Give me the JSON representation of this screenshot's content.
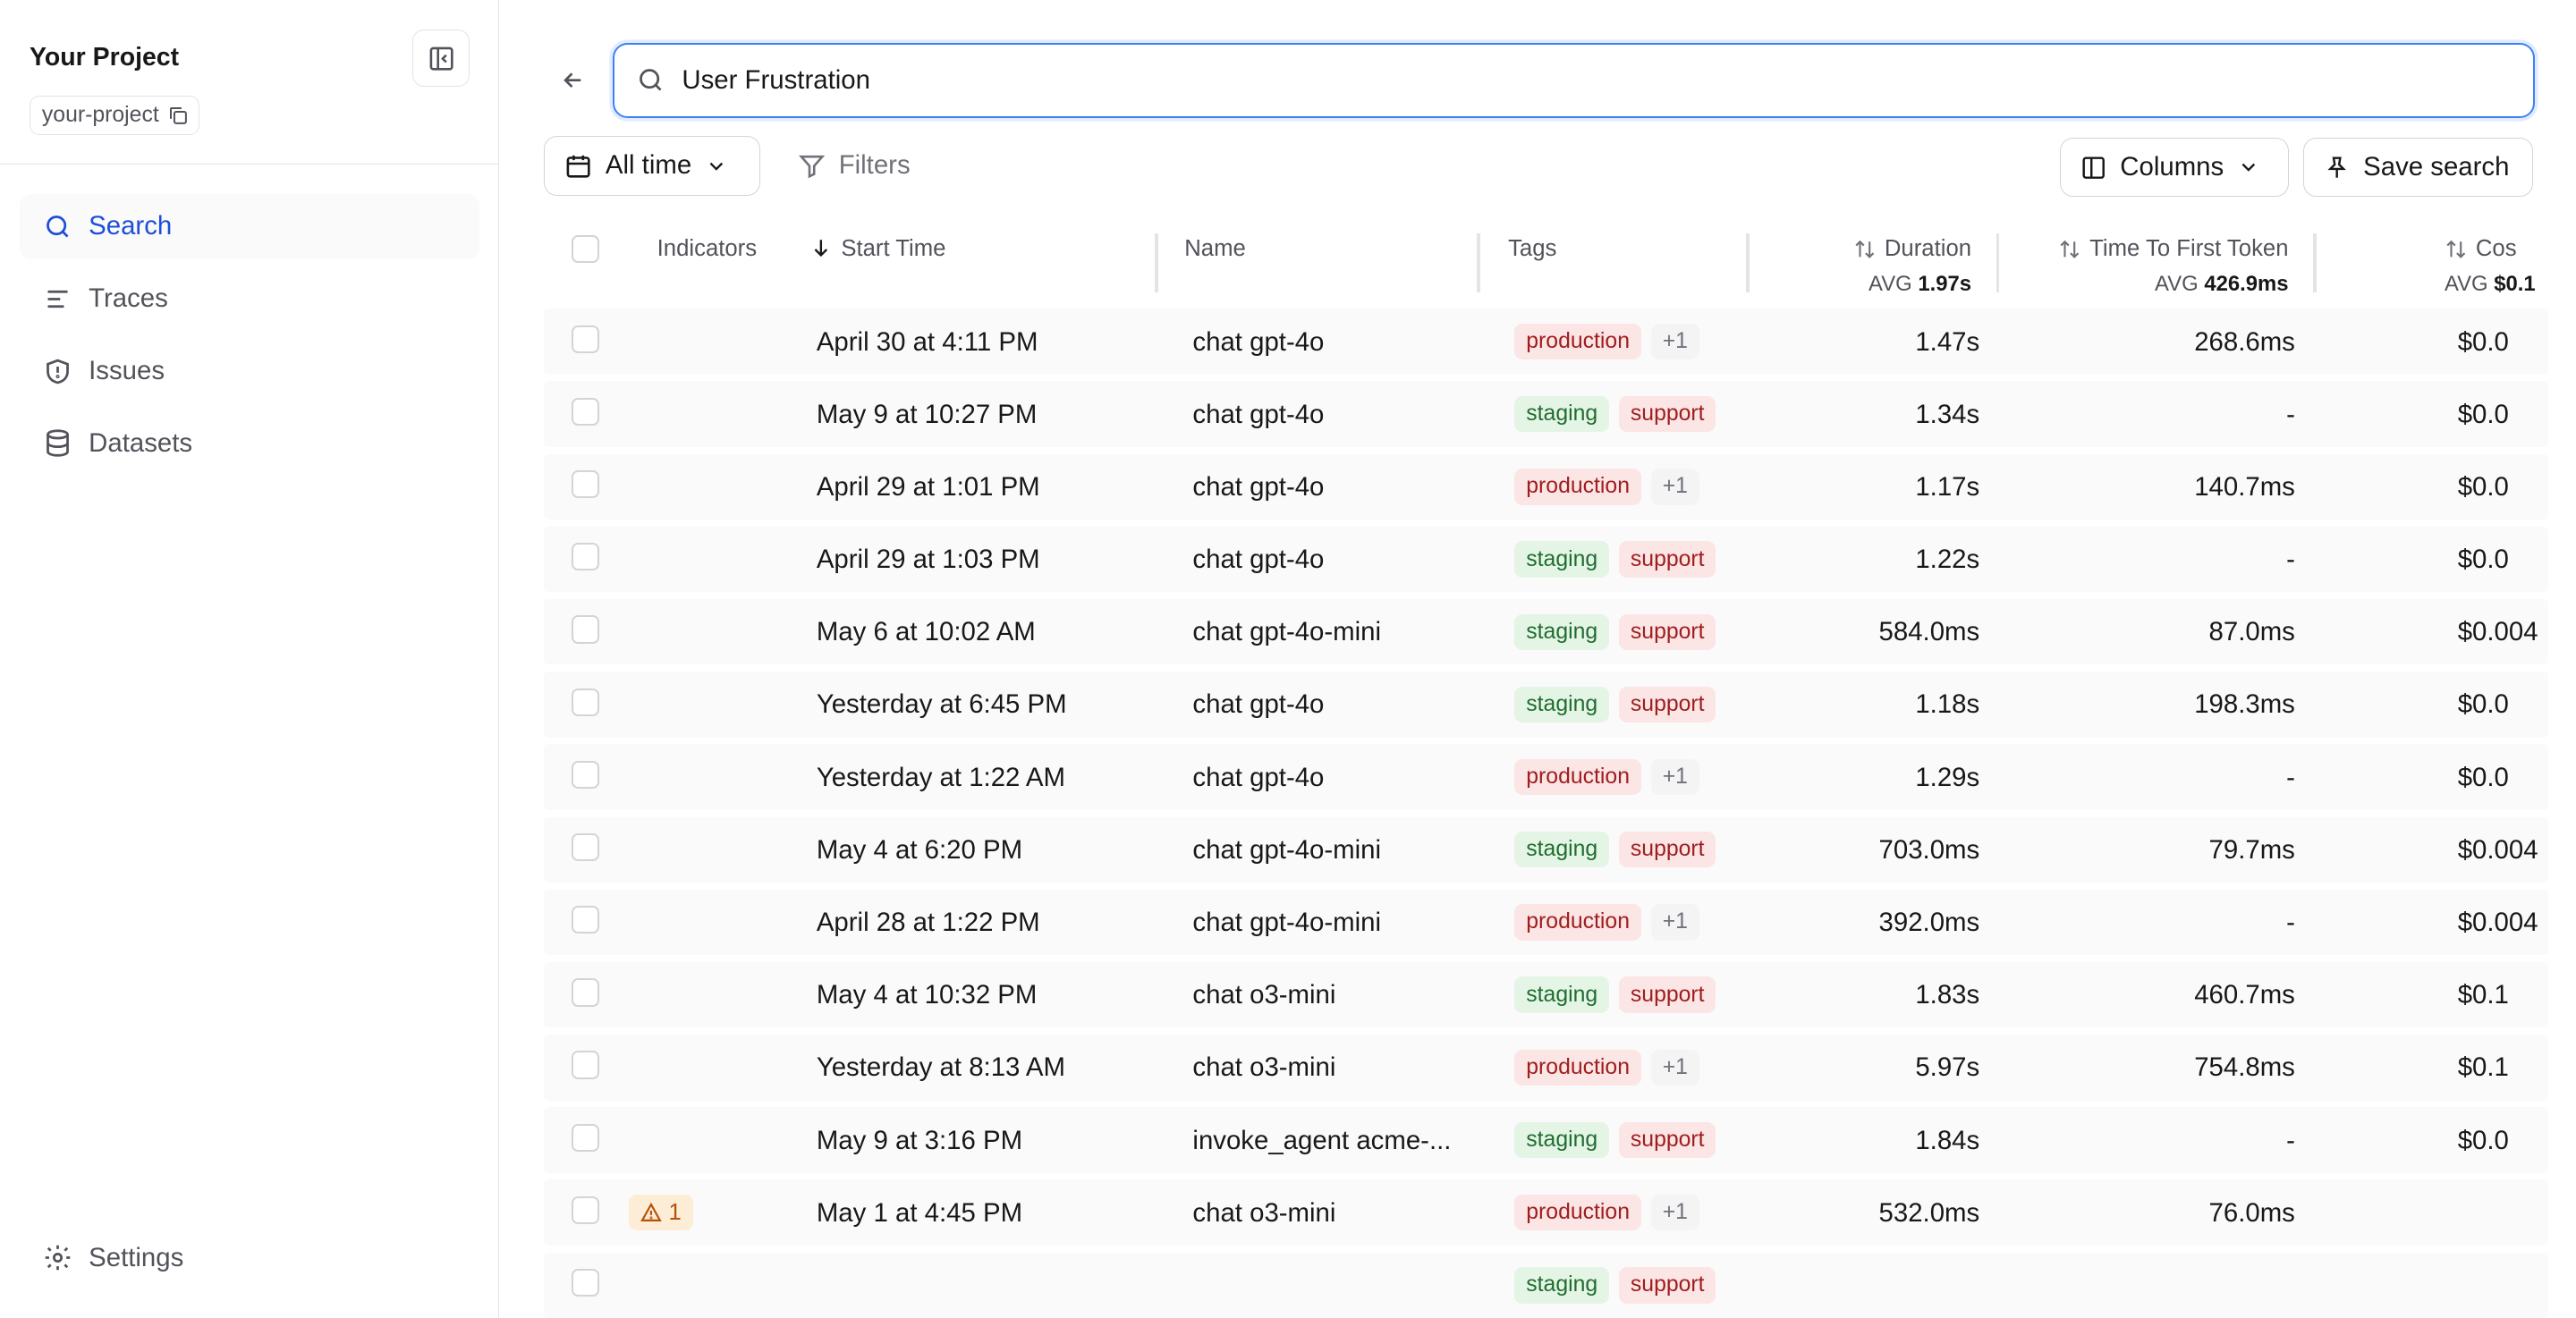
{
  "sidebar": {
    "project_title": "Your Project",
    "project_slug": "your-project",
    "nav": [
      {
        "label": "Search",
        "icon": "search-icon",
        "active": true
      },
      {
        "label": "Traces",
        "icon": "list-icon",
        "active": false
      },
      {
        "label": "Issues",
        "icon": "shield-icon",
        "active": false
      },
      {
        "label": "Datasets",
        "icon": "database-icon",
        "active": false
      }
    ],
    "settings_label": "Settings"
  },
  "search": {
    "value": "User Frustration"
  },
  "toolbar": {
    "time_range": "All time",
    "filters_label": "Filters",
    "columns_label": "Columns",
    "save_search_label": "Save search"
  },
  "table": {
    "headers": {
      "indicators": "Indicators",
      "start_time": "Start Time",
      "name": "Name",
      "tags": "Tags",
      "duration": "Duration",
      "duration_avg_label": "AVG",
      "duration_avg": "1.97s",
      "ttft": "Time To First Token",
      "ttft_avg_label": "AVG",
      "ttft_avg": "426.9ms",
      "cost": "Cos",
      "cost_avg_label": "AVG",
      "cost_avg": "$0.1"
    },
    "rows": [
      {
        "indicator": "",
        "start_time": "April 30 at 4:11 PM",
        "name": "chat gpt-4o",
        "tags": [
          "production",
          "+1"
        ],
        "duration": "1.47s",
        "ttft": "268.6ms",
        "cost": "$0.0"
      },
      {
        "indicator": "",
        "start_time": "May 9 at 10:27 PM",
        "name": "chat gpt-4o",
        "tags": [
          "staging",
          "support"
        ],
        "duration": "1.34s",
        "ttft": "-",
        "cost": "$0.0"
      },
      {
        "indicator": "",
        "start_time": "April 29 at 1:01 PM",
        "name": "chat gpt-4o",
        "tags": [
          "production",
          "+1"
        ],
        "duration": "1.17s",
        "ttft": "140.7ms",
        "cost": "$0.0"
      },
      {
        "indicator": "",
        "start_time": "April 29 at 1:03 PM",
        "name": "chat gpt-4o",
        "tags": [
          "staging",
          "support"
        ],
        "duration": "1.22s",
        "ttft": "-",
        "cost": "$0.0"
      },
      {
        "indicator": "",
        "start_time": "May 6 at 10:02 AM",
        "name": "chat gpt-4o-mini",
        "tags": [
          "staging",
          "support"
        ],
        "duration": "584.0ms",
        "ttft": "87.0ms",
        "cost": "$0.004"
      },
      {
        "indicator": "",
        "start_time": "Yesterday at 6:45 PM",
        "name": "chat gpt-4o",
        "tags": [
          "staging",
          "support"
        ],
        "duration": "1.18s",
        "ttft": "198.3ms",
        "cost": "$0.0"
      },
      {
        "indicator": "",
        "start_time": "Yesterday at 1:22 AM",
        "name": "chat gpt-4o",
        "tags": [
          "production",
          "+1"
        ],
        "duration": "1.29s",
        "ttft": "-",
        "cost": "$0.0"
      },
      {
        "indicator": "",
        "start_time": "May 4 at 6:20 PM",
        "name": "chat gpt-4o-mini",
        "tags": [
          "staging",
          "support"
        ],
        "duration": "703.0ms",
        "ttft": "79.7ms",
        "cost": "$0.004"
      },
      {
        "indicator": "",
        "start_time": "April 28 at 1:22 PM",
        "name": "chat gpt-4o-mini",
        "tags": [
          "production",
          "+1"
        ],
        "duration": "392.0ms",
        "ttft": "-",
        "cost": "$0.004"
      },
      {
        "indicator": "",
        "start_time": "May 4 at 10:32 PM",
        "name": "chat o3-mini",
        "tags": [
          "staging",
          "support"
        ],
        "duration": "1.83s",
        "ttft": "460.7ms",
        "cost": "$0.1"
      },
      {
        "indicator": "",
        "start_time": "Yesterday at 8:13 AM",
        "name": "chat o3-mini",
        "tags": [
          "production",
          "+1"
        ],
        "duration": "5.97s",
        "ttft": "754.8ms",
        "cost": "$0.1"
      },
      {
        "indicator": "",
        "start_time": "May 9 at 3:16 PM",
        "name": "invoke_agent acme-...",
        "tags": [
          "staging",
          "support"
        ],
        "duration": "1.84s",
        "ttft": "-",
        "cost": "$0.0"
      },
      {
        "indicator": "1",
        "start_time": "May 1 at 4:45 PM",
        "name": "chat o3-mini",
        "tags": [
          "production",
          "+1"
        ],
        "duration": "532.0ms",
        "ttft": "76.0ms",
        "cost": ""
      },
      {
        "indicator": "",
        "start_time": "",
        "name": "",
        "tags": [
          "staging",
          "support"
        ],
        "duration": "",
        "ttft": "",
        "cost": ""
      }
    ]
  },
  "colors": {
    "accent": "#1d4ed8",
    "focus_border": "#3b82f6",
    "tag_production_bg": "#fbe5e5",
    "tag_staging_bg": "#e4f5e6",
    "indicator_bg": "#fdecd6"
  }
}
